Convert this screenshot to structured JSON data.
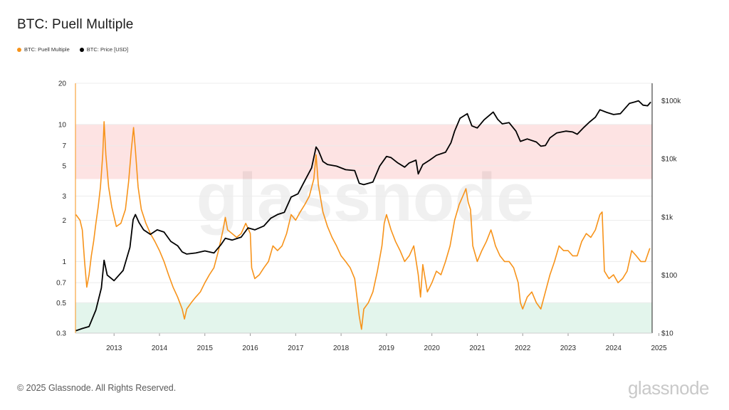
{
  "chart_data": {
    "type": "line",
    "title": "BTC: Puell Multiple",
    "legend_position": "top-left",
    "legend": [
      {
        "name": "BTC: Puell Multiple",
        "color": "#f7931a"
      },
      {
        "name": "BTC: Price [USD]",
        "color": "#000000"
      }
    ],
    "x_range": [
      2012.65,
      2025.35
    ],
    "x_ticks": [
      "2013",
      "2014",
      "2015",
      "2016",
      "2017",
      "2018",
      "2019",
      "2020",
      "2021",
      "2022",
      "2023",
      "2024",
      "2025"
    ],
    "y_left": {
      "scale": "log",
      "range": [
        0.3,
        20
      ],
      "ticks": [
        "0.3",
        "0.5",
        "0.7",
        "1",
        "2",
        "3",
        "5",
        "7",
        "10",
        "20"
      ],
      "tick_values": [
        0.3,
        0.5,
        0.7,
        1,
        2,
        3,
        5,
        7,
        10,
        20
      ]
    },
    "y_right": {
      "scale": "log",
      "range": [
        10,
        200000
      ],
      "ticks": [
        "$10",
        "$100",
        "$1k",
        "$10k",
        "$100k"
      ],
      "tick_values": [
        10,
        100,
        1000,
        10000,
        100000
      ]
    },
    "bands": [
      {
        "name": "overvalued-zone",
        "from": 4,
        "to": 10,
        "color": "#fde3e3"
      },
      {
        "name": "undervalued-zone",
        "from": 0.3,
        "to": 0.5,
        "color": "#e3f5ec"
      }
    ],
    "series": [
      {
        "name": "BTC: Puell Multiple",
        "color": "#f7931a",
        "axis": "left",
        "points": [
          [
            2012.66,
            2.2
          ],
          [
            2012.75,
            2.0
          ],
          [
            2012.8,
            1.7
          ],
          [
            2012.85,
            1.0
          ],
          [
            2012.9,
            0.65
          ],
          [
            2012.95,
            0.8
          ],
          [
            2013.0,
            1.1
          ],
          [
            2013.05,
            1.4
          ],
          [
            2013.1,
            1.9
          ],
          [
            2013.15,
            2.5
          ],
          [
            2013.2,
            3.5
          ],
          [
            2013.25,
            6.0
          ],
          [
            2013.28,
            10.5
          ],
          [
            2013.32,
            6.0
          ],
          [
            2013.38,
            3.5
          ],
          [
            2013.45,
            2.5
          ],
          [
            2013.55,
            1.8
          ],
          [
            2013.65,
            1.9
          ],
          [
            2013.75,
            2.4
          ],
          [
            2013.82,
            3.8
          ],
          [
            2013.88,
            6.5
          ],
          [
            2013.93,
            9.5
          ],
          [
            2013.97,
            6.5
          ],
          [
            2014.03,
            3.5
          ],
          [
            2014.1,
            2.4
          ],
          [
            2014.2,
            1.9
          ],
          [
            2014.3,
            1.6
          ],
          [
            2014.4,
            1.4
          ],
          [
            2014.5,
            1.2
          ],
          [
            2014.6,
            1.0
          ],
          [
            2014.7,
            0.8
          ],
          [
            2014.8,
            0.65
          ],
          [
            2014.9,
            0.55
          ],
          [
            2015.0,
            0.45
          ],
          [
            2015.05,
            0.38
          ],
          [
            2015.1,
            0.45
          ],
          [
            2015.2,
            0.5
          ],
          [
            2015.3,
            0.55
          ],
          [
            2015.4,
            0.6
          ],
          [
            2015.5,
            0.7
          ],
          [
            2015.6,
            0.8
          ],
          [
            2015.7,
            0.9
          ],
          [
            2015.8,
            1.2
          ],
          [
            2015.9,
            1.7
          ],
          [
            2015.95,
            2.1
          ],
          [
            2016.0,
            1.7
          ],
          [
            2016.1,
            1.6
          ],
          [
            2016.2,
            1.5
          ],
          [
            2016.3,
            1.6
          ],
          [
            2016.4,
            1.9
          ],
          [
            2016.5,
            1.6
          ],
          [
            2016.53,
            0.9
          ],
          [
            2016.6,
            0.75
          ],
          [
            2016.7,
            0.8
          ],
          [
            2016.8,
            0.9
          ],
          [
            2016.9,
            1.0
          ],
          [
            2017.0,
            1.3
          ],
          [
            2017.1,
            1.2
          ],
          [
            2017.2,
            1.3
          ],
          [
            2017.3,
            1.6
          ],
          [
            2017.4,
            2.2
          ],
          [
            2017.5,
            2.0
          ],
          [
            2017.6,
            2.3
          ],
          [
            2017.7,
            2.6
          ],
          [
            2017.8,
            3.0
          ],
          [
            2017.9,
            4.0
          ],
          [
            2017.95,
            6.0
          ],
          [
            2018.0,
            3.6
          ],
          [
            2018.1,
            2.3
          ],
          [
            2018.2,
            1.8
          ],
          [
            2018.3,
            1.5
          ],
          [
            2018.4,
            1.3
          ],
          [
            2018.5,
            1.1
          ],
          [
            2018.6,
            1.0
          ],
          [
            2018.7,
            0.9
          ],
          [
            2018.8,
            0.75
          ],
          [
            2018.85,
            0.55
          ],
          [
            2018.9,
            0.4
          ],
          [
            2018.95,
            0.32
          ],
          [
            2019.0,
            0.45
          ],
          [
            2019.1,
            0.5
          ],
          [
            2019.2,
            0.6
          ],
          [
            2019.3,
            0.85
          ],
          [
            2019.4,
            1.3
          ],
          [
            2019.45,
            1.9
          ],
          [
            2019.5,
            2.2
          ],
          [
            2019.6,
            1.7
          ],
          [
            2019.7,
            1.4
          ],
          [
            2019.8,
            1.2
          ],
          [
            2019.9,
            1.0
          ],
          [
            2020.0,
            1.1
          ],
          [
            2020.1,
            1.3
          ],
          [
            2020.2,
            0.8
          ],
          [
            2020.25,
            0.55
          ],
          [
            2020.3,
            0.95
          ],
          [
            2020.4,
            0.6
          ],
          [
            2020.5,
            0.7
          ],
          [
            2020.6,
            0.85
          ],
          [
            2020.7,
            0.8
          ],
          [
            2020.8,
            1.0
          ],
          [
            2020.9,
            1.3
          ],
          [
            2021.0,
            2.0
          ],
          [
            2021.1,
            2.6
          ],
          [
            2021.2,
            3.1
          ],
          [
            2021.25,
            3.4
          ],
          [
            2021.3,
            2.7
          ],
          [
            2021.35,
            2.4
          ],
          [
            2021.4,
            1.3
          ],
          [
            2021.5,
            1.0
          ],
          [
            2021.6,
            1.2
          ],
          [
            2021.7,
            1.4
          ],
          [
            2021.8,
            1.7
          ],
          [
            2021.85,
            1.5
          ],
          [
            2021.9,
            1.3
          ],
          [
            2022.0,
            1.1
          ],
          [
            2022.1,
            1.0
          ],
          [
            2022.2,
            1.0
          ],
          [
            2022.3,
            0.9
          ],
          [
            2022.4,
            0.7
          ],
          [
            2022.45,
            0.5
          ],
          [
            2022.5,
            0.45
          ],
          [
            2022.6,
            0.55
          ],
          [
            2022.7,
            0.6
          ],
          [
            2022.8,
            0.5
          ],
          [
            2022.9,
            0.45
          ],
          [
            2023.0,
            0.6
          ],
          [
            2023.1,
            0.8
          ],
          [
            2023.2,
            1.0
          ],
          [
            2023.3,
            1.3
          ],
          [
            2023.4,
            1.2
          ],
          [
            2023.5,
            1.2
          ],
          [
            2023.6,
            1.1
          ],
          [
            2023.7,
            1.1
          ],
          [
            2023.8,
            1.4
          ],
          [
            2023.9,
            1.6
          ],
          [
            2024.0,
            1.5
          ],
          [
            2024.1,
            1.7
          ],
          [
            2024.2,
            2.2
          ],
          [
            2024.25,
            2.3
          ],
          [
            2024.3,
            0.85
          ],
          [
            2024.4,
            0.75
          ],
          [
            2024.5,
            0.8
          ],
          [
            2024.6,
            0.7
          ],
          [
            2024.7,
            0.75
          ],
          [
            2024.8,
            0.85
          ],
          [
            2024.9,
            1.2
          ],
          [
            2025.0,
            1.1
          ],
          [
            2025.1,
            1.0
          ],
          [
            2025.2,
            1.0
          ],
          [
            2025.3,
            1.25
          ]
        ]
      },
      {
        "name": "BTC: Price [USD]",
        "color": "#000000",
        "axis": "right",
        "points": [
          [
            2012.66,
            11
          ],
          [
            2012.8,
            12
          ],
          [
            2012.95,
            13
          ],
          [
            2013.1,
            25
          ],
          [
            2013.22,
            60
          ],
          [
            2013.28,
            180
          ],
          [
            2013.35,
            100
          ],
          [
            2013.5,
            80
          ],
          [
            2013.7,
            120
          ],
          [
            2013.85,
            300
          ],
          [
            2013.92,
            900
          ],
          [
            2013.97,
            1100
          ],
          [
            2014.05,
            800
          ],
          [
            2014.15,
            600
          ],
          [
            2014.3,
            500
          ],
          [
            2014.45,
            600
          ],
          [
            2014.6,
            550
          ],
          [
            2014.75,
            380
          ],
          [
            2014.9,
            320
          ],
          [
            2015.0,
            250
          ],
          [
            2015.1,
            230
          ],
          [
            2015.3,
            240
          ],
          [
            2015.5,
            260
          ],
          [
            2015.7,
            240
          ],
          [
            2015.85,
            330
          ],
          [
            2015.95,
            430
          ],
          [
            2016.1,
            400
          ],
          [
            2016.3,
            450
          ],
          [
            2016.45,
            650
          ],
          [
            2016.6,
            600
          ],
          [
            2016.8,
            700
          ],
          [
            2016.95,
            950
          ],
          [
            2017.1,
            1100
          ],
          [
            2017.25,
            1200
          ],
          [
            2017.4,
            2200
          ],
          [
            2017.55,
            2500
          ],
          [
            2017.7,
            4200
          ],
          [
            2017.85,
            7000
          ],
          [
            2017.95,
            16000
          ],
          [
            2018.0,
            14000
          ],
          [
            2018.1,
            9000
          ],
          [
            2018.2,
            8000
          ],
          [
            2018.4,
            7500
          ],
          [
            2018.6,
            6500
          ],
          [
            2018.8,
            6300
          ],
          [
            2018.9,
            3800
          ],
          [
            2019.0,
            3600
          ],
          [
            2019.2,
            4000
          ],
          [
            2019.35,
            7500
          ],
          [
            2019.5,
            11000
          ],
          [
            2019.6,
            10500
          ],
          [
            2019.75,
            8500
          ],
          [
            2019.9,
            7200
          ],
          [
            2020.0,
            8500
          ],
          [
            2020.15,
            9500
          ],
          [
            2020.2,
            5500
          ],
          [
            2020.3,
            8000
          ],
          [
            2020.45,
            9500
          ],
          [
            2020.6,
            11500
          ],
          [
            2020.8,
            13000
          ],
          [
            2020.92,
            19000
          ],
          [
            2021.0,
            30000
          ],
          [
            2021.12,
            50000
          ],
          [
            2021.28,
            60000
          ],
          [
            2021.38,
            37000
          ],
          [
            2021.5,
            34000
          ],
          [
            2021.65,
            47000
          ],
          [
            2021.85,
            64000
          ],
          [
            2021.95,
            48000
          ],
          [
            2022.05,
            40000
          ],
          [
            2022.2,
            42000
          ],
          [
            2022.35,
            30000
          ],
          [
            2022.45,
            20000
          ],
          [
            2022.6,
            22000
          ],
          [
            2022.8,
            19500
          ],
          [
            2022.9,
            16500
          ],
          [
            2023.0,
            17000
          ],
          [
            2023.1,
            23000
          ],
          [
            2023.25,
            28000
          ],
          [
            2023.45,
            30000
          ],
          [
            2023.6,
            29000
          ],
          [
            2023.7,
            26500
          ],
          [
            2023.85,
            35000
          ],
          [
            2023.97,
            43000
          ],
          [
            2024.1,
            52000
          ],
          [
            2024.2,
            70000
          ],
          [
            2024.35,
            63000
          ],
          [
            2024.5,
            58000
          ],
          [
            2024.65,
            60000
          ],
          [
            2024.85,
            90000
          ],
          [
            2024.96,
            95000
          ],
          [
            2025.05,
            100000
          ],
          [
            2025.15,
            84000
          ],
          [
            2025.25,
            82000
          ],
          [
            2025.32,
            95000
          ]
        ]
      }
    ]
  },
  "watermark": "glassnode",
  "footer": {
    "copyright": "© 2025 Glassnode. All Rights Reserved.",
    "brand": "glassnode"
  }
}
